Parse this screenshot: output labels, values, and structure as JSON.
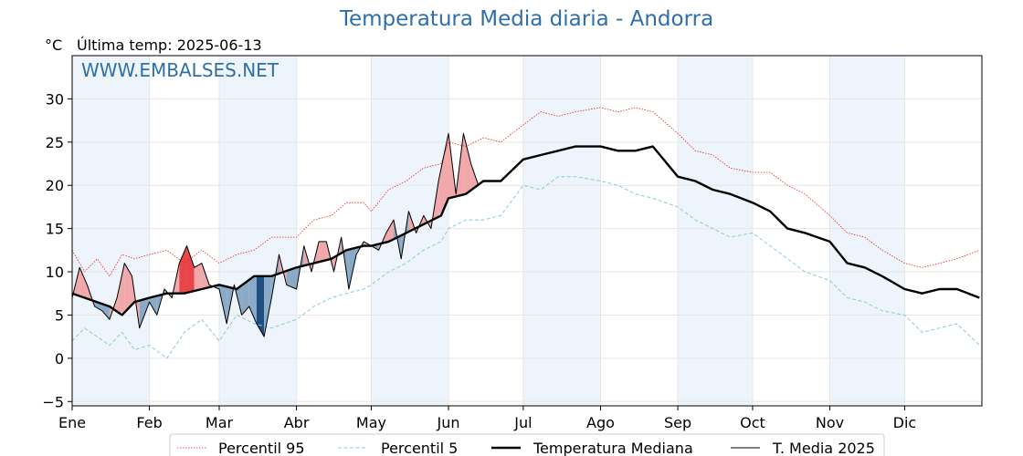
{
  "title": "Temperatura Media diaria - Andorra",
  "unit_label": "°C",
  "last_temp_label": "Última temp: 2025-06-13",
  "watermark": "WWW.EMBALSES.NET",
  "colors": {
    "p95": "#e8251f",
    "p5": "#8cc8dc",
    "median": "#000000",
    "current": "#000000",
    "above_fill": "#f0a8aa",
    "above_strong_fill": "#e8454a",
    "below_fill": "#8aaac8",
    "below_strong_fill": "#1f4f80",
    "month_band": "#eef4fb",
    "title": "#2f6fa8"
  },
  "chart_data": {
    "type": "line",
    "title": "Temperatura Media diaria - Andorra",
    "ylabel": "°C",
    "ylim": [
      -5.5,
      35
    ],
    "yticks": [
      -5,
      0,
      5,
      10,
      15,
      20,
      25,
      30
    ],
    "ytick_labels": [
      "−5",
      "0",
      "5",
      "10",
      "15",
      "20",
      "25",
      "30"
    ],
    "xlim": [
      0,
      365
    ],
    "months": [
      "Ene",
      "Feb",
      "Mar",
      "Abr",
      "May",
      "Jun",
      "Jul",
      "Ago",
      "Sep",
      "Oct",
      "Nov",
      "Dic"
    ],
    "month_start_days": [
      0,
      31,
      59,
      90,
      120,
      151,
      181,
      212,
      243,
      273,
      304,
      334
    ],
    "grid": true,
    "legend_position": "bottom",
    "series": [
      {
        "name": "Percentil 95",
        "style": "dotted-red",
        "x": [
          0,
          5,
          10,
          15,
          20,
          25,
          31,
          38,
          45,
          52,
          59,
          66,
          73,
          80,
          90,
          97,
          104,
          110,
          117,
          120,
          127,
          134,
          141,
          148,
          151,
          158,
          165,
          172,
          181,
          188,
          195,
          202,
          212,
          219,
          226,
          233,
          243,
          250,
          257,
          264,
          273,
          280,
          287,
          294,
          304,
          311,
          318,
          325,
          334,
          341,
          348,
          355,
          364
        ],
        "values": [
          12.5,
          10.0,
          11.5,
          9.5,
          12.0,
          11.5,
          12.0,
          12.5,
          11.0,
          12.5,
          11.0,
          12.0,
          12.5,
          14.0,
          14.0,
          16.0,
          16.5,
          18.0,
          18.0,
          17.0,
          19.5,
          20.5,
          22.0,
          22.5,
          25.0,
          24.5,
          25.5,
          25.0,
          27.0,
          28.5,
          28.0,
          28.5,
          29.0,
          28.5,
          29.0,
          28.5,
          26.0,
          24.0,
          23.5,
          22.0,
          21.5,
          21.5,
          20.0,
          19.0,
          16.5,
          14.5,
          14.0,
          12.5,
          11.0,
          10.5,
          11.0,
          11.5,
          12.5
        ]
      },
      {
        "name": "Percentil 5",
        "style": "dashed-lightblue",
        "x": [
          0,
          5,
          10,
          15,
          20,
          25,
          31,
          38,
          45,
          52,
          59,
          66,
          73,
          80,
          90,
          97,
          104,
          110,
          117,
          120,
          127,
          134,
          141,
          148,
          151,
          158,
          165,
          172,
          181,
          188,
          195,
          202,
          212,
          219,
          226,
          233,
          243,
          250,
          257,
          264,
          273,
          280,
          287,
          294,
          304,
          311,
          318,
          325,
          334,
          341,
          348,
          355,
          364
        ],
        "values": [
          2.0,
          3.5,
          2.5,
          1.5,
          3.0,
          1.0,
          1.5,
          0.0,
          3.0,
          4.5,
          2.0,
          5.0,
          4.0,
          3.5,
          4.5,
          6.0,
          7.0,
          7.5,
          8.0,
          8.5,
          10.0,
          11.0,
          12.5,
          13.5,
          15.0,
          16.0,
          16.0,
          16.5,
          20.0,
          19.5,
          21.0,
          21.0,
          20.5,
          20.0,
          19.0,
          18.5,
          17.5,
          16.0,
          15.0,
          14.0,
          14.5,
          13.0,
          11.5,
          10.0,
          9.0,
          7.0,
          6.5,
          5.5,
          5.0,
          3.0,
          3.5,
          4.0,
          1.5
        ]
      },
      {
        "name": "Temperatura Mediana",
        "style": "solid-thick",
        "x": [
          0,
          5,
          10,
          15,
          20,
          25,
          31,
          38,
          45,
          52,
          59,
          66,
          73,
          80,
          90,
          97,
          104,
          110,
          117,
          120,
          127,
          134,
          141,
          148,
          151,
          158,
          165,
          172,
          181,
          188,
          195,
          202,
          212,
          219,
          226,
          233,
          243,
          250,
          257,
          264,
          273,
          280,
          287,
          294,
          304,
          311,
          318,
          325,
          334,
          341,
          348,
          355,
          364
        ],
        "values": [
          7.5,
          7.0,
          6.5,
          6.0,
          5.0,
          6.5,
          7.0,
          7.5,
          7.5,
          8.0,
          8.5,
          8.0,
          9.5,
          9.5,
          10.5,
          11.0,
          11.5,
          12.5,
          13.0,
          13.0,
          13.5,
          14.5,
          15.5,
          16.5,
          18.5,
          19.0,
          20.5,
          20.5,
          23.0,
          23.5,
          24.0,
          24.5,
          24.5,
          24.0,
          24.0,
          24.5,
          21.0,
          20.5,
          19.5,
          19.0,
          18.0,
          17.0,
          15.0,
          14.5,
          13.5,
          11.0,
          10.5,
          9.5,
          8.0,
          7.5,
          8.0,
          8.0,
          7.0
        ]
      },
      {
        "name": "T. Media 2025",
        "style": "solid-thin",
        "x": [
          0,
          3,
          6,
          9,
          12,
          15,
          18,
          21,
          24,
          27,
          31,
          34,
          37,
          40,
          43,
          46,
          49,
          52,
          55,
          59,
          62,
          65,
          68,
          71,
          74,
          77,
          80,
          83,
          86,
          90,
          93,
          96,
          99,
          102,
          105,
          108,
          111,
          114,
          117,
          120,
          123,
          126,
          129,
          132,
          135,
          138,
          141,
          144,
          147,
          151,
          154,
          157,
          160,
          163
        ],
        "values": [
          7.0,
          10.5,
          8.5,
          6.0,
          5.5,
          4.5,
          7.0,
          11.0,
          9.5,
          3.5,
          6.5,
          5.0,
          8.0,
          7.0,
          11.0,
          13.0,
          10.5,
          11.0,
          8.5,
          8.0,
          4.0,
          8.5,
          5.0,
          6.0,
          4.0,
          2.5,
          7.0,
          12.0,
          8.5,
          8.0,
          13.0,
          10.0,
          13.5,
          13.5,
          10.0,
          14.0,
          8.0,
          12.0,
          13.5,
          13.0,
          12.5,
          14.5,
          16.0,
          11.5,
          17.0,
          14.5,
          16.5,
          15.0,
          20.5,
          26.0,
          19.0,
          26.0,
          22.5,
          20.0
        ]
      }
    ]
  }
}
